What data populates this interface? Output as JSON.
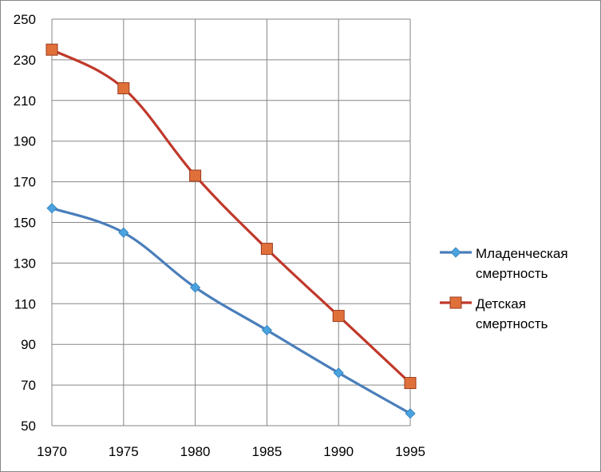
{
  "chart_data": {
    "type": "line",
    "title": "",
    "xlabel": "",
    "ylabel": "",
    "x": [
      1970,
      1975,
      1980,
      1985,
      1990,
      1995
    ],
    "ylim": [
      50,
      250
    ],
    "yticks": [
      50,
      70,
      90,
      110,
      130,
      150,
      170,
      190,
      210,
      230,
      250
    ],
    "grid": true,
    "legend_position": "right",
    "series": [
      {
        "name_lines": [
          "Младенческая",
          "смертность"
        ],
        "values": [
          157,
          145,
          118,
          97,
          76,
          56
        ],
        "color": "#4a7ebb",
        "marker_color": "#4aa3df",
        "marker": "diamond"
      },
      {
        "name_lines": [
          "Детская",
          "смертность"
        ],
        "values": [
          235,
          216,
          173,
          137,
          104,
          71
        ],
        "color": "#c0392b",
        "marker_color": "#e0703a",
        "marker": "square"
      }
    ]
  }
}
